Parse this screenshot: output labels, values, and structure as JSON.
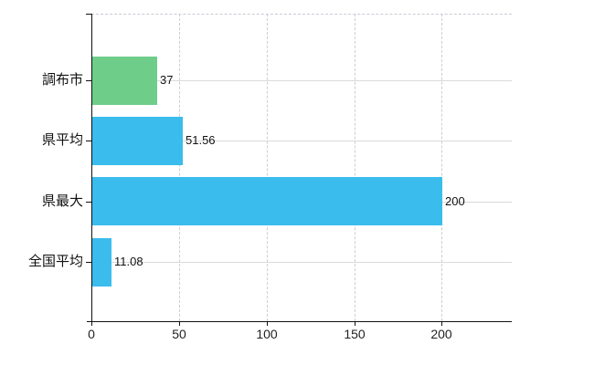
{
  "chart_data": {
    "type": "bar",
    "orientation": "horizontal",
    "title": "",
    "xlabel": "",
    "ylabel": "",
    "categories": [
      "調布市",
      "県平均",
      "県最大",
      "全国平均"
    ],
    "values": [
      37,
      51.56,
      200,
      11.08
    ],
    "value_labels": [
      "37",
      "51.56",
      "200",
      "11.08"
    ],
    "series": [
      {
        "name": "",
        "values": [
          37,
          51.56,
          200,
          11.08
        ]
      }
    ],
    "bar_colors": [
      "#6ecd89",
      "#3abced",
      "#3abced",
      "#3abced"
    ],
    "xlim": [
      0,
      240
    ],
    "x_ticks": [
      0,
      50,
      100,
      150,
      200
    ],
    "x_tick_labels": [
      "0",
      "50",
      "100",
      "150",
      "200"
    ],
    "grid": true,
    "gridline_style": {
      "horizontal": "solid",
      "vertical": "dashed",
      "top_border": "dashed"
    },
    "legend": "none",
    "colors": {
      "axis": "#111111",
      "horizontal_grid": "#d7dbd7",
      "vertical_grid": "#ccccd6",
      "text": "#111111",
      "background": "#ffffff"
    }
  }
}
